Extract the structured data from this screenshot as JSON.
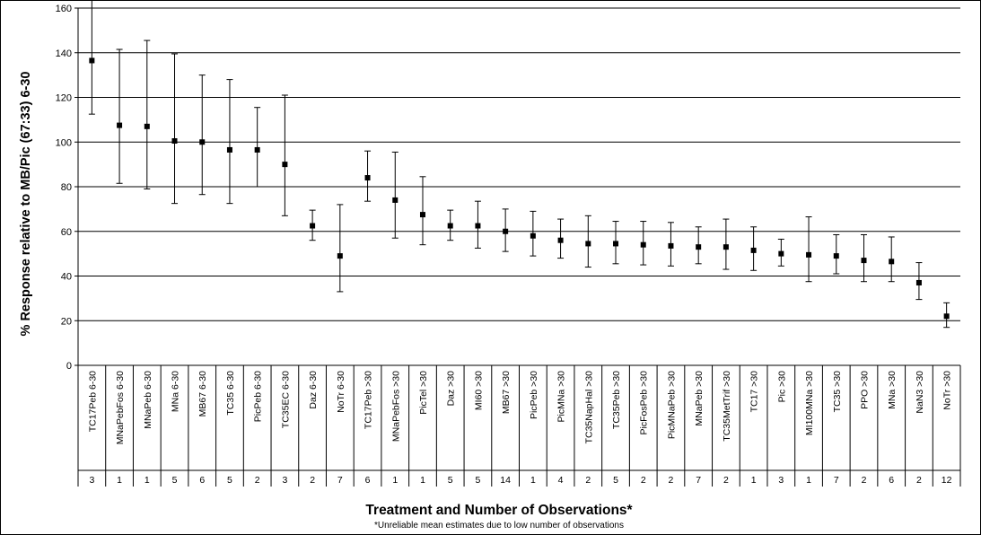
{
  "chart_data": {
    "type": "scatter",
    "ylabel": "% Response relative to MB/Pic (67:33) 6-30",
    "xlabel": "Treatment and Number of Observations*",
    "footnote": "*Unreliable mean estimates due to low number of observations",
    "ylim": [
      0,
      160
    ],
    "ytick_step": 20,
    "yticks": [
      "0",
      "20",
      "40",
      "60",
      "80",
      "100",
      "120",
      "140",
      "160"
    ],
    "grid": true,
    "marker_color": "#000000",
    "categories": [
      "TC17Peb 6-30",
      "MNaPebFos 6-30",
      "MNaPeb 6-30",
      "MNa 6-30",
      "MB67 6-30",
      "TC35 6-30",
      "PicPeb 6-30",
      "TC35EC 6-30",
      "Daz 6-30",
      "NoTr 6-30",
      "TC17Peb >30",
      "MNaPebFos >30",
      "PicTel >30",
      "Daz >30",
      "MI60 >30",
      "MB67 >30",
      "PicPeb >30",
      "PicMNa >30",
      "TC35NapHal >30",
      "TC35Peb >30",
      "PicFosPeb >30",
      "PicMNaPeb >30",
      "MNaPeb >30",
      "TC35MetTrif >30",
      "TC17 >30",
      "Pic >30",
      "MI100MNa >30",
      "TC35 >30",
      "PPO >30",
      "MNa >30",
      "NaN3 >30",
      "NoTr >30"
    ],
    "counts": [
      "3",
      "1",
      "1",
      "5",
      "6",
      "5",
      "2",
      "3",
      "2",
      "7",
      "6",
      "1",
      "1",
      "5",
      "5",
      "14",
      "1",
      "4",
      "2",
      "5",
      "2",
      "2",
      "7",
      "2",
      "1",
      "3",
      "1",
      "7",
      "2",
      "6",
      "2",
      "12"
    ],
    "means": [
      136.5,
      107.5,
      107,
      100.5,
      100,
      96.5,
      96.5,
      90,
      62.5,
      49,
      84,
      74,
      67.5,
      62.5,
      62.5,
      60,
      58,
      56,
      54.5,
      54.5,
      54,
      53.5,
      53,
      53,
      51.5,
      50,
      49.5,
      49,
      47,
      46.5,
      37,
      22
    ],
    "upper": [
      165,
      141.5,
      145.5,
      139.5,
      130,
      128,
      115.5,
      121,
      69.5,
      72,
      96,
      95.5,
      84.5,
      69.5,
      73.5,
      70,
      69,
      65.5,
      67,
      64.5,
      64.5,
      64,
      62,
      65.5,
      62,
      56.5,
      66.5,
      58.5,
      58.5,
      57.5,
      46,
      28
    ],
    "lower": [
      112.5,
      81.5,
      79,
      72.5,
      76.5,
      72.5,
      80,
      67,
      56,
      33,
      73.5,
      57,
      54,
      56,
      52.5,
      51,
      49,
      48,
      44,
      45.5,
      45,
      44.5,
      45.5,
      43,
      42.5,
      44.5,
      37.5,
      41,
      37.5,
      37.5,
      29.5,
      17
    ]
  }
}
